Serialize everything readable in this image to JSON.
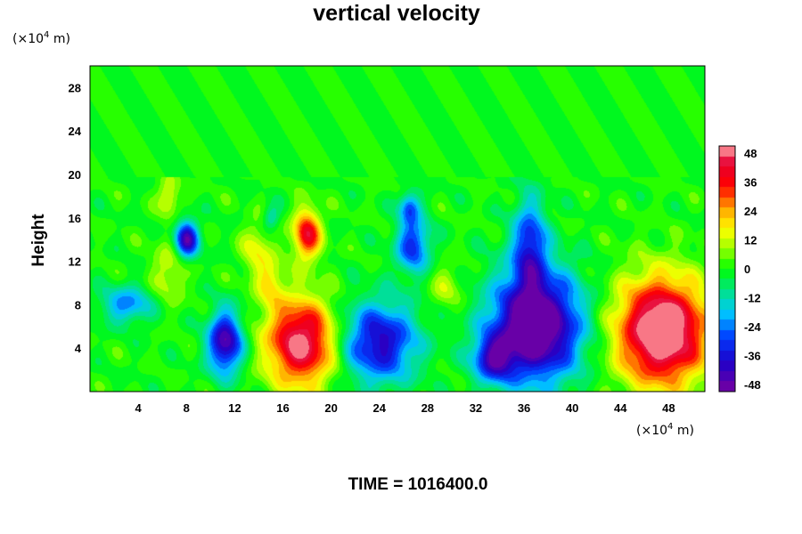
{
  "chart_data": {
    "type": "heatmap",
    "title": "vertical velocity",
    "xlabel": "",
    "ylabel": "Height",
    "x_unit": {
      "prefix": "(×10",
      "exp": "4",
      "suffix": " m)"
    },
    "y_unit": {
      "prefix": "(×10",
      "exp": "4",
      "suffix": " m)"
    },
    "xlim": [
      0,
      51
    ],
    "ylim": [
      0,
      30
    ],
    "x_ticks": [
      4,
      8,
      12,
      16,
      20,
      24,
      28,
      32,
      36,
      40,
      44,
      48
    ],
    "y_ticks": [
      4,
      8,
      12,
      16,
      20,
      24,
      28
    ],
    "colorbar": {
      "ticks": [
        48,
        36,
        24,
        12,
        0,
        -12,
        -24,
        -36,
        -48
      ],
      "range": [
        -48,
        48
      ]
    },
    "background_value": 0,
    "features": [
      {
        "x": 47.5,
        "y": 5.5,
        "sx": 2.6,
        "sy": 3.4,
        "value": 58
      },
      {
        "x": 17.5,
        "y": 4.5,
        "sx": 2.0,
        "sy": 2.8,
        "value": 48
      },
      {
        "x": 18.0,
        "y": 14.5,
        "sx": 0.8,
        "sy": 1.6,
        "value": 38
      },
      {
        "x": 13.8,
        "y": 13.0,
        "sx": 0.9,
        "sy": 1.8,
        "value": 14
      },
      {
        "x": 15.0,
        "y": 10.0,
        "sx": 0.8,
        "sy": 1.5,
        "value": 14
      },
      {
        "x": 6.5,
        "y": 18.0,
        "sx": 0.6,
        "sy": 1.2,
        "value": 16
      },
      {
        "x": 6.5,
        "y": 11.0,
        "sx": 1.0,
        "sy": 2.0,
        "value": 12
      },
      {
        "x": 37.0,
        "y": 6.0,
        "sx": 2.6,
        "sy": 3.5,
        "value": -58
      },
      {
        "x": 33.5,
        "y": 3.0,
        "sx": 1.2,
        "sy": 1.5,
        "value": -32
      },
      {
        "x": 36.5,
        "y": 13.5,
        "sx": 1.0,
        "sy": 3.0,
        "value": -30
      },
      {
        "x": 24.0,
        "y": 4.5,
        "sx": 2.2,
        "sy": 2.6,
        "value": -38
      },
      {
        "x": 11.2,
        "y": 4.5,
        "sx": 1.0,
        "sy": 2.0,
        "value": -44
      },
      {
        "x": 8.0,
        "y": 14.0,
        "sx": 0.7,
        "sy": 1.2,
        "value": -42
      },
      {
        "x": 26.8,
        "y": 13.5,
        "sx": 1.0,
        "sy": 1.8,
        "value": -30
      },
      {
        "x": 26.5,
        "y": 17.0,
        "sx": 0.6,
        "sy": 1.0,
        "value": -24
      },
      {
        "x": 3.0,
        "y": 8.0,
        "sx": 1.5,
        "sy": 1.2,
        "value": -22
      },
      {
        "x": 15.0,
        "y": 16.0,
        "sx": 0.5,
        "sy": 0.8,
        "value": -14
      },
      {
        "x": 29.5,
        "y": 9.5,
        "sx": 1.0,
        "sy": 1.5,
        "value": 10
      }
    ]
  },
  "footer": {
    "text": "TIME = 1016400.0"
  }
}
